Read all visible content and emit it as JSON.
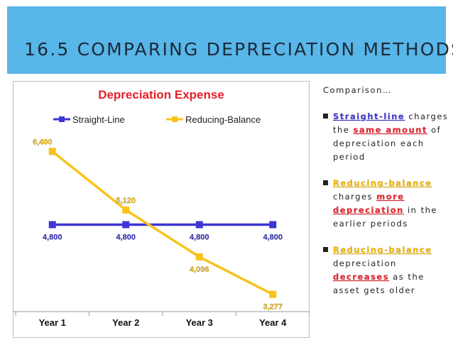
{
  "slide": {
    "title": "16.5 COMPARING DEPRECIATION METHODS"
  },
  "side_panel": {
    "intro": "Comparison…",
    "bullets": [
      {
        "term": "Straight-line",
        "pre": "charges the",
        "key": "same amount",
        "post": "of depreciation each period"
      },
      {
        "term": "Reducing-balance",
        "pre": "charges",
        "key": "more depreciation",
        "post": "in the earlier periods"
      },
      {
        "term": "Reducing-balance",
        "pre": "depreciation",
        "key": "decreases",
        "post": "as the asset gets older"
      }
    ]
  },
  "colors": {
    "straight_line": "#3d36d2",
    "reducing_balance": "#f7c31c",
    "title_red": "#e8202a",
    "banner": "#58b6e8"
  },
  "chart_data": {
    "type": "line",
    "title": "Depreciation Expense",
    "categories": [
      "Year 1",
      "Year 2",
      "Year 3",
      "Year 4"
    ],
    "series": [
      {
        "name": "Straight-Line",
        "values": [
          4800,
          4800,
          4800,
          4800
        ],
        "labels": [
          "4,800",
          "4,800",
          "4,800",
          "4,800"
        ]
      },
      {
        "name": "Reducing-Balance",
        "values": [
          6400,
          5120,
          4096,
          3277
        ],
        "labels": [
          "6,400",
          "5,120",
          "4,096",
          "3,277"
        ]
      }
    ],
    "legend": "top",
    "grid": false,
    "y_axis_visible": false
  }
}
